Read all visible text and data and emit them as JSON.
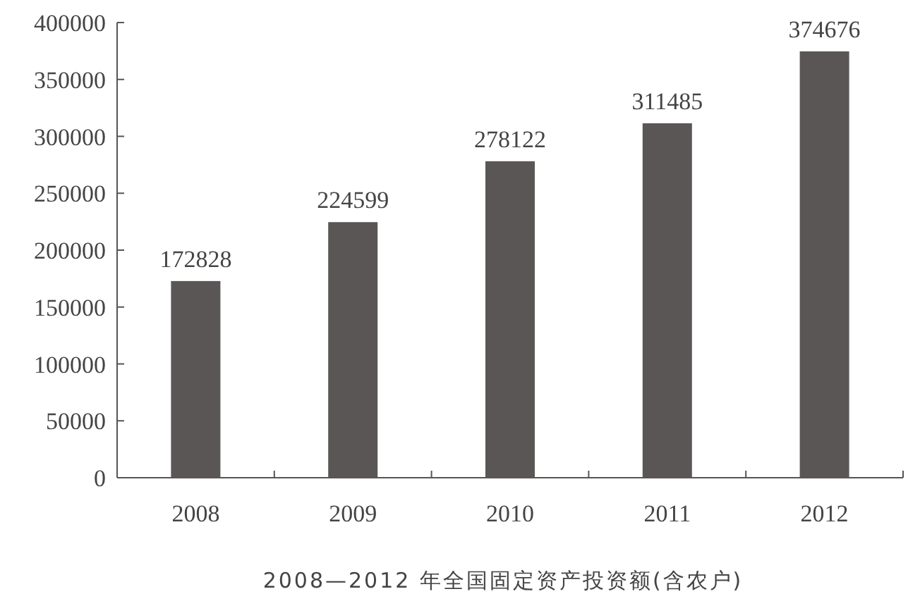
{
  "chart_data": {
    "type": "bar",
    "title": "2008—2012 年全国固定资产投资额(含农户)",
    "categories": [
      "2008",
      "2009",
      "2010",
      "2011",
      "2012"
    ],
    "values": [
      172828,
      224599,
      278122,
      311485,
      374676
    ],
    "color": "#5a5656",
    "ylim": [
      0,
      400000
    ],
    "yticks": [
      0,
      50000,
      100000,
      150000,
      200000,
      250000,
      300000,
      350000,
      400000
    ],
    "data_labels": true
  }
}
